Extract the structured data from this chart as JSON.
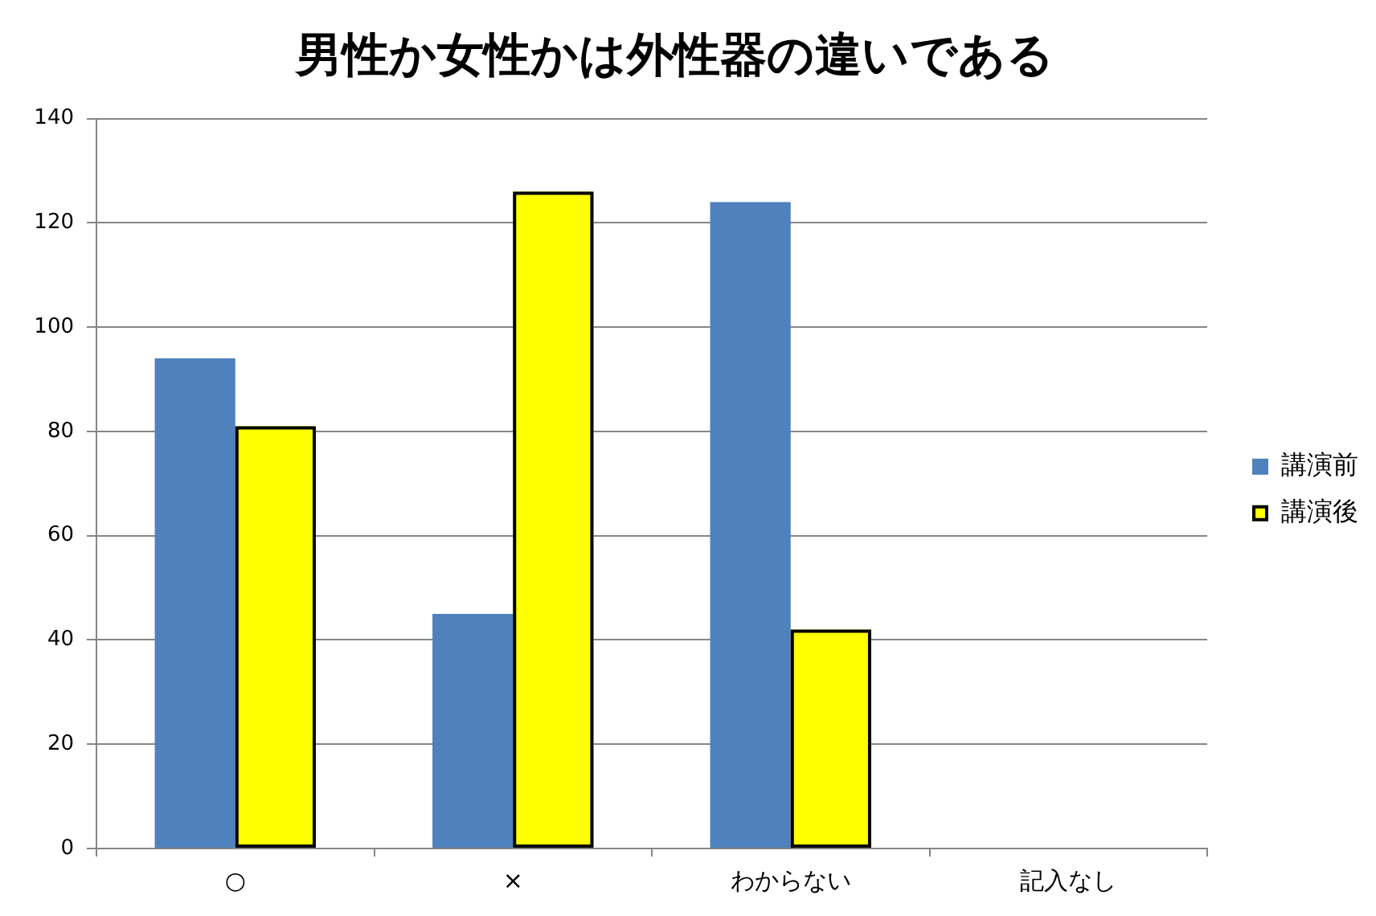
{
  "chart_data": {
    "type": "bar",
    "title": "男性か女性かは外性器の違いである",
    "categories": [
      "○",
      "×",
      "わからない",
      "記入なし"
    ],
    "series": [
      {
        "name": "講演前",
        "color": "#4f81bd",
        "values": [
          94,
          45,
          124,
          0
        ]
      },
      {
        "name": "講演後",
        "color": "#ffff00",
        "values": [
          81,
          126,
          42,
          0
        ]
      }
    ],
    "ylim": [
      0,
      140
    ],
    "yticks": [
      0,
      20,
      40,
      60,
      80,
      100,
      120,
      140
    ],
    "grid": "y",
    "legend": "right"
  }
}
